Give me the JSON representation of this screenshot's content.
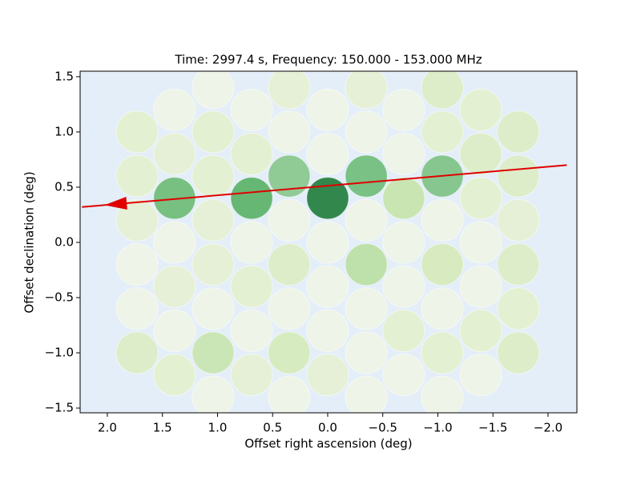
{
  "chart_data": {
    "type": "scatter",
    "title": "Time: 2997.4 s, Frequency: 150.000 - 153.000 MHz",
    "x_label": "Offset right ascension (deg)",
    "y_label": "Offset declination (deg)",
    "xlim": [
      2.247,
      -2.262
    ],
    "ylim": [
      -1.543,
      1.55
    ],
    "xticks": [
      {
        "value": 2.0,
        "label": "2.0"
      },
      {
        "value": 1.5,
        "label": "1.5"
      },
      {
        "value": 1.0,
        "label": "1.0"
      },
      {
        "value": 0.5,
        "label": "0.5"
      },
      {
        "value": 0.0,
        "label": "0.0"
      },
      {
        "value": -0.5,
        "label": "−0.5"
      },
      {
        "value": -1.0,
        "label": "−1.0"
      },
      {
        "value": -1.5,
        "label": "−1.5"
      },
      {
        "value": -2.0,
        "label": "−2.0"
      }
    ],
    "yticks": [
      {
        "value": 1.5,
        "label": "1.5"
      },
      {
        "value": 1.0,
        "label": "1.0"
      },
      {
        "value": 0.5,
        "label": "0.5"
      },
      {
        "value": 0.0,
        "label": "0.0"
      },
      {
        "value": -0.5,
        "label": "−0.5"
      },
      {
        "value": -1.0,
        "label": "−1.0"
      },
      {
        "value": -1.5,
        "label": "−1.5"
      }
    ],
    "background": "#e4eef8",
    "x": [
      1.73,
      1.73,
      1.73,
      1.73,
      1.73,
      1.73,
      1.39,
      1.39,
      1.39,
      1.39,
      1.39,
      1.39,
      1.39,
      1.04,
      1.04,
      1.04,
      1.04,
      1.04,
      1.04,
      1.04,
      1.04,
      0.69,
      0.69,
      0.69,
      0.69,
      0.69,
      0.69,
      0.69,
      0.35,
      0.35,
      0.35,
      0.35,
      0.35,
      0.35,
      0.35,
      0.35,
      0,
      0,
      0,
      0,
      0,
      0,
      0,
      -0.35,
      -0.35,
      -0.35,
      -0.35,
      -0.35,
      -0.35,
      -0.35,
      -0.35,
      -0.69,
      -0.69,
      -0.69,
      -0.69,
      -0.69,
      -0.69,
      -0.69,
      -1.04,
      -1.04,
      -1.04,
      -1.04,
      -1.04,
      -1.04,
      -1.04,
      -1.04,
      -1.39,
      -1.39,
      -1.39,
      -1.39,
      -1.39,
      -1.39,
      -1.39,
      -1.73,
      -1.73,
      -1.73,
      -1.73,
      -1.73,
      -1.73
    ],
    "y": [
      1.0,
      0.6,
      0.2,
      -0.2,
      -0.6,
      -1.0,
      1.2,
      0.8,
      0.4,
      0.0,
      -0.4,
      -0.8,
      -1.2,
      1.4,
      1.0,
      0.6,
      0.2,
      -0.2,
      -0.6,
      -1.0,
      -1.4,
      1.2,
      0.8,
      0.4,
      0.0,
      -0.4,
      -0.8,
      -1.2,
      1.4,
      1.0,
      0.6,
      0.2,
      -0.2,
      -0.6,
      -1.0,
      -1.4,
      1.2,
      0.8,
      0.4,
      0.0,
      -0.4,
      -0.8,
      -1.2,
      1.4,
      1.0,
      0.6,
      0.2,
      -0.2,
      -0.6,
      -1.0,
      -1.4,
      1.2,
      0.8,
      0.4,
      0.0,
      -0.4,
      -0.8,
      -1.2,
      1.4,
      1.0,
      0.6,
      0.2,
      -0.2,
      -0.6,
      -1.0,
      -1.4,
      1.2,
      0.8,
      0.4,
      0.0,
      -0.4,
      -0.8,
      -1.2,
      1.0,
      0.6,
      0.2,
      -0.2,
      -0.6,
      -1.0
    ],
    "colors": [
      "#e3efcd",
      "#e3efcd",
      "#e6f0d3",
      "#eef4e4",
      "#eef4e4",
      "#dcecc4",
      "#eef4e4",
      "#e6f0d3",
      "#6aba73",
      "#eef4e4",
      "#e6f0d3",
      "#eef4e4",
      "#e3efcd",
      "#eef4e4",
      "#e3efcd",
      "#e3efcd",
      "#e6f0d3",
      "#e6f0d3",
      "#eef4e4",
      "#c8e4ae",
      "#eef4e4",
      "#eef4e4",
      "#e3efcd",
      "#58b065",
      "#eef4e4",
      "#e3efcd",
      "#eef4e4",
      "#e6f0d3",
      "#e6f0d3",
      "#eef4e4",
      "#86c58a",
      "#eef4e4",
      "#dcecc4",
      "#eef4e4",
      "#d4eab8",
      "#eef4e4",
      "#eef4e4",
      "#eef4e4",
      "#1e7b3a",
      "#eef4e4",
      "#eef4e4",
      "#eef4e4",
      "#e6f0d3",
      "#e6f0d3",
      "#eef4e4",
      "#6dbb77",
      "#eef4e4",
      "#b9dea1",
      "#eef4e4",
      "#eef4e4",
      "#eef4e4",
      "#eef4e4",
      "#eef4e4",
      "#c5e3a8",
      "#eef4e4",
      "#eef4e4",
      "#e3efcd",
      "#eef4e4",
      "#dcecc4",
      "#e3efcd",
      "#7cc283",
      "#eef4e4",
      "#d6eab9",
      "#eef4e4",
      "#e3efcd",
      "#eef4e4",
      "#e3efcd",
      "#dcecc4",
      "#e3efcd",
      "#eef4e4",
      "#eef4e4",
      "#e3efcd",
      "#eef4e4",
      "#dcecc4",
      "#dcecc4",
      "#e6f0d3",
      "#dcecc4",
      "#e3efcd",
      "#dcecc4"
    ],
    "arrow": {
      "x": [
        -2.17,
        2.23
      ],
      "y": [
        0.7,
        0.32
      ],
      "color": "#e00000"
    }
  }
}
